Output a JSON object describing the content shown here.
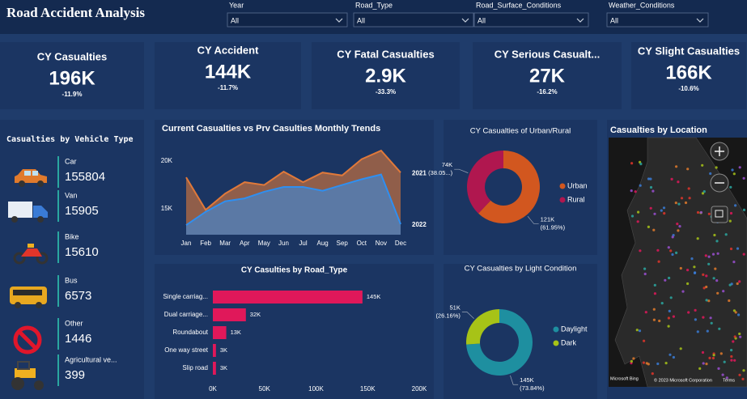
{
  "header": {
    "title": "Road Accident Analysis"
  },
  "filters": [
    {
      "label": "Year",
      "value": "All"
    },
    {
      "label": "Road_Type",
      "value": "All"
    },
    {
      "label": "Road_Surface_Conditions",
      "value": "All"
    },
    {
      "label": "Weather_Conditions",
      "value": "All"
    }
  ],
  "kpis": [
    {
      "label": "CY Casualties",
      "value": "196K",
      "change": "-11.9%"
    },
    {
      "label": "CY Accident",
      "value": "144K",
      "change": "-11.7%"
    },
    {
      "label": "CY Fatal Casualties",
      "value": "2.9K",
      "change": "-33.3%"
    },
    {
      "label": "CY Serious Casualt...",
      "value": "27K",
      "change": "-16.2%"
    },
    {
      "label": "CY Slight Casualties",
      "value": "166K",
      "change": "-10.6%"
    }
  ],
  "vehicles": {
    "title": "Casualties by Vehicle Type",
    "items": [
      {
        "label": "Car",
        "value": 155804
      },
      {
        "label": "Van",
        "value": 15905
      },
      {
        "label": "Bike",
        "value": 15610
      },
      {
        "label": "Bus",
        "value": 6573
      },
      {
        "label": "Other",
        "value": 1446
      },
      {
        "label": "Agricultural ve...",
        "value": 399
      }
    ]
  },
  "map": {
    "title": "Casualties by Location",
    "logo": "Microsoft Bing",
    "attribution": "© 2023 Microsoft Corporation",
    "terms": "Terms"
  },
  "chart_data": [
    {
      "type": "area",
      "title": "Current Casualties vs Prv Casulties Monthly Trends",
      "categories": [
        "Jan",
        "Feb",
        "Mar",
        "Apr",
        "May",
        "Jun",
        "Jul",
        "Aug",
        "Sep",
        "Oct",
        "Nov",
        "Dec"
      ],
      "series": [
        {
          "name": "2021",
          "color": "#e0793a",
          "values": [
            18300,
            14900,
            16600,
            17800,
            17500,
            18900,
            17800,
            18800,
            18500,
            20200,
            21100,
            18800
          ]
        },
        {
          "name": "2022",
          "color": "#2f8ff0",
          "values": [
            13300,
            14700,
            15800,
            16100,
            16800,
            17300,
            17300,
            16900,
            17500,
            18100,
            18600,
            13400
          ]
        }
      ],
      "ylim": [
        12300,
        21700
      ],
      "yticks": [
        {
          "value": 15000,
          "label": "15K"
        },
        {
          "value": 20000,
          "label": "20K"
        }
      ]
    },
    {
      "type": "bar",
      "orientation": "horizontal",
      "title": "CY Casulties by Road_Type",
      "color": "#e0185a",
      "categories": [
        "Single carriag...",
        "Dual carriage...",
        "Roundabout",
        "One way street",
        "Slip road"
      ],
      "values": [
        145000,
        32000,
        13000,
        3000,
        3000
      ],
      "value_labels": [
        "145K",
        "32K",
        "13K",
        "3K",
        "3K"
      ],
      "xlim": [
        0,
        200000
      ],
      "xticks": [
        {
          "value": 0,
          "label": "0K"
        },
        {
          "value": 50000,
          "label": "50K"
        },
        {
          "value": 100000,
          "label": "100K"
        },
        {
          "value": 150000,
          "label": "150K"
        },
        {
          "value": 200000,
          "label": "200K"
        }
      ]
    },
    {
      "type": "donut",
      "title": "CY Casualties of Urban/Rural",
      "categories": [
        "Urban",
        "Rural"
      ],
      "colors": [
        "#d2571f",
        "#b0174f"
      ],
      "values": [
        121000,
        74000
      ],
      "value_labels": [
        "121K",
        "74K"
      ],
      "percents": [
        61.95,
        38.05
      ],
      "percent_labels": [
        "(61.95%)",
        "(38.05...)"
      ]
    },
    {
      "type": "donut",
      "title": "CY Casualties by Light Condition",
      "categories": [
        "Daylight",
        "Dark"
      ],
      "colors": [
        "#1e8fa0",
        "#a7c317"
      ],
      "values": [
        145000,
        51000
      ],
      "value_labels": [
        "145K",
        "51K"
      ],
      "percents": [
        73.84,
        26.16
      ],
      "percent_labels": [
        "(73.84%)",
        "(26.16%)"
      ]
    }
  ]
}
